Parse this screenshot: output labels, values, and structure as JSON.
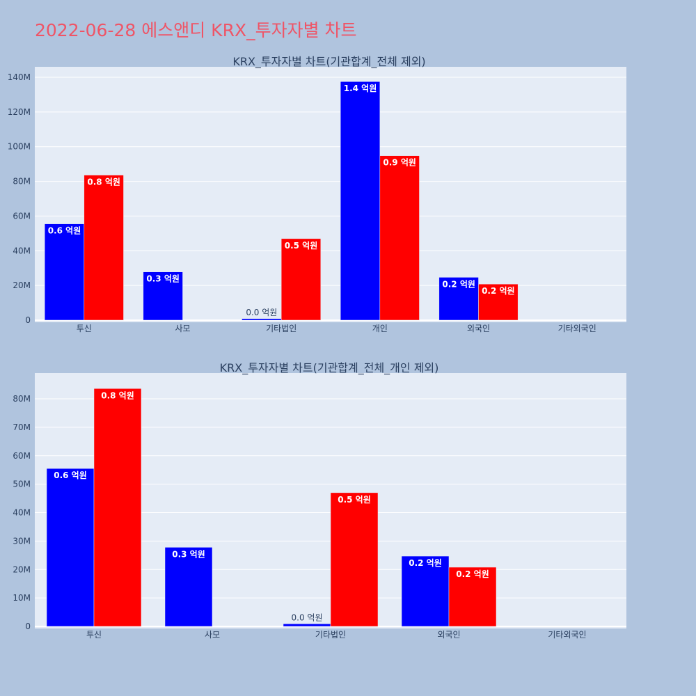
{
  "page": {
    "title": "2022-06-28 에스앤디 KRX_투자자별 차트"
  },
  "colors": {
    "background": "#b0c4de",
    "plot_bg": "#e5ecf6",
    "buy": "#0000ff",
    "sell": "#ff0000",
    "text": "#2a3f5f",
    "title": "#ef5466"
  },
  "chart_data": [
    {
      "type": "bar",
      "title": "KRX_투자자별 차트(기관합계_전체 제외)",
      "categories": [
        "투신",
        "사모",
        "기타법인",
        "개인",
        "외국인",
        "기타외국인"
      ],
      "series": [
        {
          "values": [
            55500000,
            27800000,
            900000,
            137500000,
            24700000,
            0
          ],
          "labels": [
            "0.6 억원",
            "0.3 억원",
            "0.0 억원",
            "1.4 억원",
            "0.2 억원",
            ""
          ]
        },
        {
          "values": [
            83600000,
            0,
            47000000,
            94800000,
            20800000,
            0
          ],
          "labels": [
            "0.8 억원",
            "",
            "0.5 억원",
            "0.9 억원",
            "0.2 억원",
            ""
          ]
        }
      ],
      "yticks": [
        "0",
        "20M",
        "40M",
        "60M",
        "80M",
        "100M",
        "120M",
        "140M"
      ],
      "ylim": [
        0,
        140000000
      ],
      "ytick_step": 20000000,
      "grid": true
    },
    {
      "type": "bar",
      "title": "KRX_투자자별 차트(기관합계_전체_개인 제외)",
      "categories": [
        "투신",
        "사모",
        "기타법인",
        "외국인",
        "기타외국인"
      ],
      "series": [
        {
          "values": [
            55500000,
            27800000,
            900000,
            24700000,
            0
          ],
          "labels": [
            "0.6 억원",
            "0.3 억원",
            "0.0 억원",
            "0.2 억원",
            ""
          ]
        },
        {
          "values": [
            83600000,
            0,
            47000000,
            20800000,
            0
          ],
          "labels": [
            "0.8 억원",
            "",
            "0.5 억원",
            "0.2 억원",
            ""
          ]
        }
      ],
      "yticks": [
        "0",
        "10M",
        "20M",
        "30M",
        "40M",
        "50M",
        "60M",
        "70M",
        "80M"
      ],
      "ylim": [
        0,
        80000000
      ],
      "ytick_step": 10000000,
      "grid": true
    }
  ]
}
